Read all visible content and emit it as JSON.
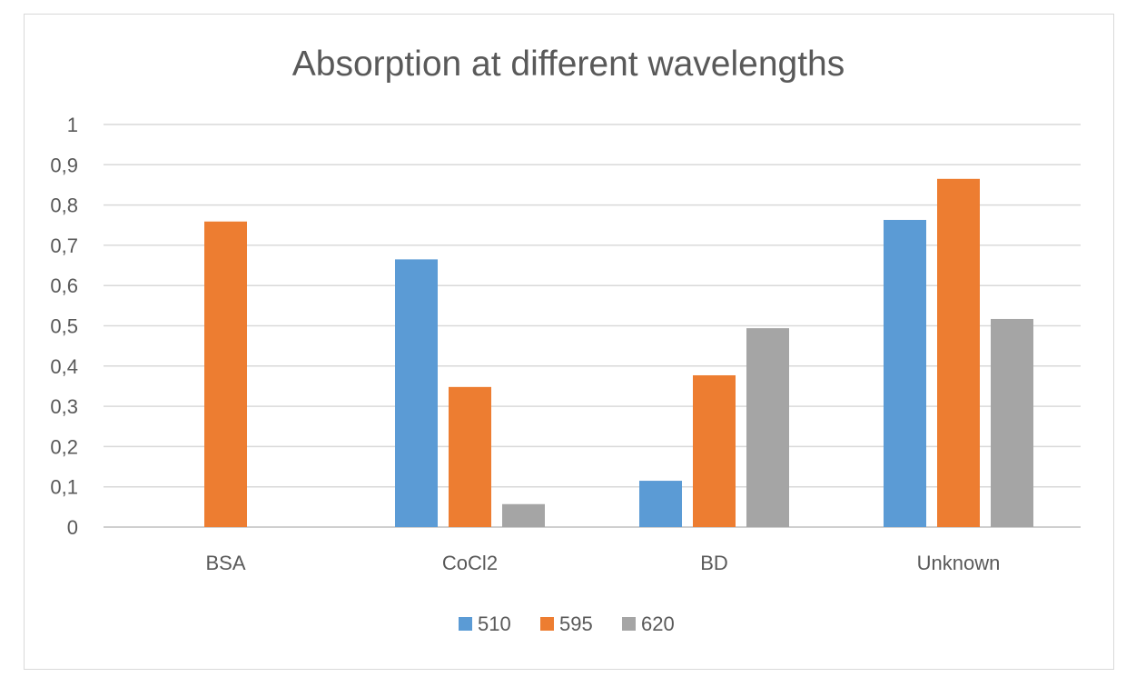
{
  "chart_data": {
    "type": "bar",
    "title": "Absorption at different wavelengths",
    "xlabel": "",
    "ylabel": "",
    "categories": [
      "BSA",
      "CoCl2",
      "BD",
      "Unknown"
    ],
    "series": [
      {
        "name": "510",
        "color": "#5b9bd5",
        "values": [
          0,
          0.665,
          0.115,
          0.763
        ]
      },
      {
        "name": "595",
        "color": "#ed7d31",
        "values": [
          0.759,
          0.348,
          0.377,
          0.865
        ]
      },
      {
        "name": "620",
        "color": "#a5a5a5",
        "values": [
          0,
          0.057,
          0.494,
          0.517
        ]
      }
    ],
    "ylim": [
      0,
      1
    ],
    "yticks": [
      "0",
      "0,1",
      "0,2",
      "0,3",
      "0,4",
      "0,5",
      "0,6",
      "0,7",
      "0,8",
      "0,9",
      "1"
    ],
    "grid": true,
    "legend_position": "bottom"
  }
}
